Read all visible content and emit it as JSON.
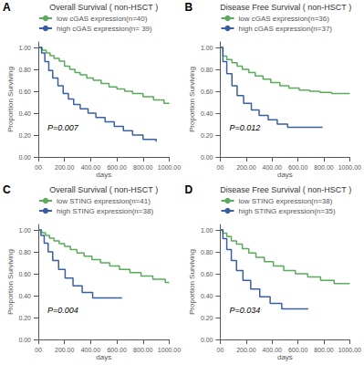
{
  "chart_data": [
    {
      "type": "step",
      "panel_label": "A",
      "title": "Overall Survival ( non-HSCT )",
      "annotation": "P=0.007",
      "xlabel": "days",
      "ylabel": "Proportion Surviving",
      "xlim": [
        0,
        1000
      ],
      "ylim": [
        0.0,
        1.05
      ],
      "xticks": [
        {
          "value": 0,
          "label": "00"
        },
        {
          "value": 200,
          "label": "200.00"
        },
        {
          "value": 400,
          "label": "400.00"
        },
        {
          "value": 600,
          "label": "600.00"
        },
        {
          "value": 800,
          "label": "800.00"
        },
        {
          "value": 1000,
          "label": "1000.00"
        }
      ],
      "yticks": [
        {
          "value": 0.0,
          "label": "0.00"
        },
        {
          "value": 0.2,
          "label": "0.20"
        },
        {
          "value": 0.4,
          "label": "0.40"
        },
        {
          "value": 0.6,
          "label": "0.60"
        },
        {
          "value": 0.8,
          "label": "0.80"
        },
        {
          "value": 1.0,
          "label": "1.00"
        }
      ],
      "grid": false,
      "legend": "top",
      "series": [
        {
          "name": "low cGAS expression(n=40)",
          "color": "#5aab5a",
          "x": [
            0,
            30,
            60,
            90,
            120,
            160,
            200,
            240,
            280,
            320,
            370,
            420,
            480,
            540,
            600,
            660,
            720,
            800,
            880,
            960,
            1000
          ],
          "values": [
            1.0,
            0.975,
            0.95,
            0.925,
            0.9,
            0.875,
            0.83,
            0.8,
            0.77,
            0.75,
            0.72,
            0.7,
            0.67,
            0.64,
            0.62,
            0.6,
            0.58,
            0.55,
            0.52,
            0.49,
            0.49
          ]
        },
        {
          "name": "high cGAS expression(n= 39)",
          "color": "#3a5fa0",
          "x": [
            0,
            25,
            50,
            80,
            110,
            150,
            190,
            230,
            270,
            320,
            380,
            440,
            510,
            580,
            650,
            720,
            800,
            900
          ],
          "values": [
            1.0,
            0.95,
            0.87,
            0.79,
            0.72,
            0.65,
            0.58,
            0.53,
            0.48,
            0.44,
            0.4,
            0.36,
            0.32,
            0.28,
            0.24,
            0.2,
            0.16,
            0.14
          ]
        }
      ]
    },
    {
      "type": "step",
      "panel_label": "B",
      "title": "Disease Free Survival ( non-HSCT )",
      "annotation": "P=0.012",
      "xlabel": "days",
      "ylabel": "Proportion Surviving",
      "xlim": [
        0,
        1000
      ],
      "ylim": [
        0.0,
        1.05
      ],
      "xticks": [
        {
          "value": 0,
          "label": "00"
        },
        {
          "value": 200,
          "label": "200.00"
        },
        {
          "value": 400,
          "label": "400.00"
        },
        {
          "value": 600,
          "label": "600.00"
        },
        {
          "value": 800,
          "label": "800.00"
        },
        {
          "value": 1000,
          "label": "1000.00"
        }
      ],
      "yticks": [
        {
          "value": 0.0,
          "label": "0.00"
        },
        {
          "value": 0.2,
          "label": "0.20"
        },
        {
          "value": 0.4,
          "label": "0.40"
        },
        {
          "value": 0.6,
          "label": "0.60"
        },
        {
          "value": 0.8,
          "label": "0.80"
        },
        {
          "value": 1.0,
          "label": "1.00"
        }
      ],
      "grid": false,
      "legend": "top",
      "series": [
        {
          "name": "low cGAS expression(n=36)",
          "color": "#5aab5a",
          "x": [
            0,
            20,
            50,
            90,
            130,
            170,
            220,
            270,
            330,
            390,
            460,
            530,
            610,
            690,
            770,
            860,
            950,
            1000
          ],
          "values": [
            1.0,
            0.92,
            0.89,
            0.86,
            0.83,
            0.8,
            0.77,
            0.74,
            0.71,
            0.68,
            0.65,
            0.63,
            0.61,
            0.6,
            0.59,
            0.58,
            0.58,
            0.58
          ]
        },
        {
          "name": "high cGAS expression(n=37)",
          "color": "#3a5fa0",
          "x": [
            0,
            20,
            50,
            90,
            130,
            180,
            240,
            300,
            370,
            440,
            520,
            610,
            700,
            790
          ],
          "values": [
            1.0,
            0.87,
            0.76,
            0.65,
            0.56,
            0.49,
            0.43,
            0.38,
            0.34,
            0.3,
            0.27,
            0.27,
            0.27,
            0.27
          ]
        }
      ]
    },
    {
      "type": "step",
      "panel_label": "C",
      "title": "Overall Survival ( non-HSCT )",
      "annotation": "P=0.004",
      "xlabel": "days",
      "ylabel": "Proportion Surviving",
      "xlim": [
        0,
        1000
      ],
      "ylim": [
        0.0,
        1.05
      ],
      "xticks": [
        {
          "value": 0,
          "label": "00"
        },
        {
          "value": 200,
          "label": "200.00"
        },
        {
          "value": 400,
          "label": "400.00"
        },
        {
          "value": 600,
          "label": "600.00"
        },
        {
          "value": 800,
          "label": "800.00"
        },
        {
          "value": 1000,
          "label": "1000.00"
        }
      ],
      "yticks": [
        {
          "value": 0.0,
          "label": "0.00"
        },
        {
          "value": 0.2,
          "label": "0.20"
        },
        {
          "value": 0.4,
          "label": "0.40"
        },
        {
          "value": 0.6,
          "label": "0.60"
        },
        {
          "value": 0.8,
          "label": "0.80"
        },
        {
          "value": 1.0,
          "label": "1.00"
        }
      ],
      "grid": false,
      "legend": "top",
      "series": [
        {
          "name": "low STING expression(n=41)",
          "color": "#5aab5a",
          "x": [
            0,
            25,
            55,
            85,
            120,
            160,
            200,
            245,
            295,
            350,
            410,
            475,
            545,
            620,
            700,
            785,
            875,
            970,
            1000
          ],
          "values": [
            1.0,
            0.975,
            0.95,
            0.925,
            0.9,
            0.875,
            0.85,
            0.82,
            0.79,
            0.76,
            0.73,
            0.7,
            0.67,
            0.64,
            0.61,
            0.58,
            0.55,
            0.52,
            0.52
          ]
        },
        {
          "name": "high STING expression(n=38)",
          "color": "#3a5fa0",
          "x": [
            0,
            20,
            45,
            75,
            110,
            155,
            205,
            265,
            335,
            415,
            510,
            615,
            640
          ],
          "values": [
            1.0,
            0.95,
            0.88,
            0.8,
            0.72,
            0.64,
            0.56,
            0.49,
            0.43,
            0.38,
            0.38,
            0.38,
            0.38
          ]
        }
      ]
    },
    {
      "type": "step",
      "panel_label": "D",
      "title": "Disease Free Survival ( non-HSCT )",
      "annotation": "P=0.034",
      "xlabel": "days",
      "ylabel": "Proportion Surviving",
      "xlim": [
        0,
        1000
      ],
      "ylim": [
        0.0,
        1.05
      ],
      "xticks": [
        {
          "value": 0,
          "label": "00"
        },
        {
          "value": 200,
          "label": "200.00"
        },
        {
          "value": 400,
          "label": "400.00"
        },
        {
          "value": 600,
          "label": "600.00"
        },
        {
          "value": 800,
          "label": "800.00"
        },
        {
          "value": 1000,
          "label": "1000.00"
        }
      ],
      "yticks": [
        {
          "value": 0.0,
          "label": "0.00"
        },
        {
          "value": 0.2,
          "label": "0.20"
        },
        {
          "value": 0.4,
          "label": "0.40"
        },
        {
          "value": 0.6,
          "label": "0.60"
        },
        {
          "value": 0.8,
          "label": "0.80"
        },
        {
          "value": 1.0,
          "label": "1.00"
        }
      ],
      "grid": false,
      "legend": "top",
      "series": [
        {
          "name": "low STING expression(n=38)",
          "color": "#5aab5a",
          "x": [
            0,
            20,
            50,
            85,
            125,
            170,
            220,
            275,
            340,
            410,
            490,
            580,
            675,
            775,
            880,
            990,
            1000
          ],
          "values": [
            1.0,
            0.97,
            0.94,
            0.9,
            0.87,
            0.83,
            0.79,
            0.75,
            0.71,
            0.67,
            0.63,
            0.6,
            0.57,
            0.54,
            0.51,
            0.51,
            0.51
          ]
        },
        {
          "name": "high STING expression(n=35)",
          "color": "#3a5fa0",
          "x": [
            0,
            20,
            50,
            85,
            125,
            175,
            235,
            305,
            385,
            475,
            570,
            680
          ],
          "values": [
            1.0,
            0.92,
            0.82,
            0.72,
            0.63,
            0.54,
            0.46,
            0.39,
            0.33,
            0.28,
            0.28,
            0.28
          ]
        }
      ]
    }
  ]
}
